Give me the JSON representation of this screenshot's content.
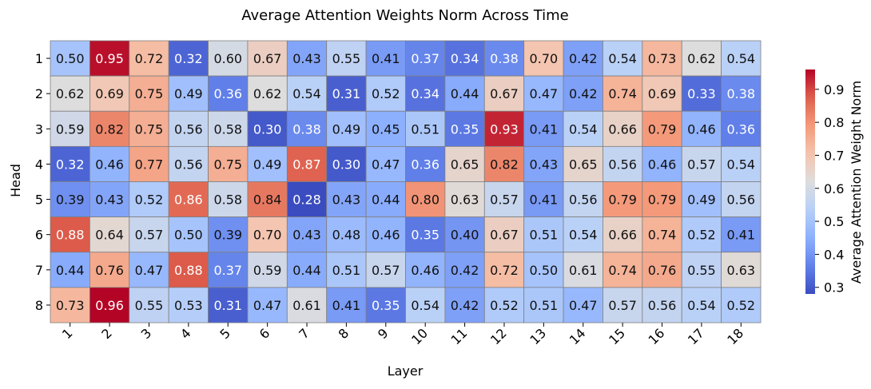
{
  "chart_data": {
    "type": "heatmap",
    "title": "Average Attention Weights Norm Across Time",
    "xlabel": "Layer",
    "ylabel": "Head",
    "colorbar_label": "Average Attention Weight Norm",
    "colormap": "coolwarm",
    "colorbar_range": [
      0.28,
      0.96
    ],
    "colorbar_ticks": [
      "0.3",
      "0.4",
      "0.5",
      "0.6",
      "0.7",
      "0.8",
      "0.9"
    ],
    "x_categories": [
      "1",
      "2",
      "3",
      "4",
      "5",
      "6",
      "7",
      "8",
      "9",
      "10",
      "11",
      "12",
      "13",
      "14",
      "15",
      "16",
      "17",
      "18"
    ],
    "y_categories": [
      "1",
      "2",
      "3",
      "4",
      "5",
      "6",
      "7",
      "8"
    ],
    "values": [
      [
        0.5,
        0.95,
        0.72,
        0.32,
        0.6,
        0.67,
        0.43,
        0.55,
        0.41,
        0.37,
        0.34,
        0.38,
        0.7,
        0.42,
        0.54,
        0.73,
        0.62,
        0.54
      ],
      [
        0.62,
        0.69,
        0.75,
        0.49,
        0.36,
        0.62,
        0.54,
        0.31,
        0.52,
        0.34,
        0.44,
        0.67,
        0.47,
        0.42,
        0.74,
        0.69,
        0.33,
        0.38
      ],
      [
        0.59,
        0.82,
        0.75,
        0.56,
        0.58,
        0.3,
        0.38,
        0.49,
        0.45,
        0.51,
        0.35,
        0.93,
        0.41,
        0.54,
        0.66,
        0.79,
        0.46,
        0.36
      ],
      [
        0.32,
        0.46,
        0.77,
        0.56,
        0.75,
        0.49,
        0.87,
        0.3,
        0.47,
        0.36,
        0.65,
        0.82,
        0.43,
        0.65,
        0.56,
        0.46,
        0.57,
        0.54
      ],
      [
        0.39,
        0.43,
        0.52,
        0.86,
        0.58,
        0.84,
        0.28,
        0.43,
        0.44,
        0.8,
        0.63,
        0.57,
        0.41,
        0.56,
        0.79,
        0.79,
        0.49,
        0.56
      ],
      [
        0.88,
        0.64,
        0.57,
        0.5,
        0.39,
        0.7,
        0.43,
        0.48,
        0.46,
        0.35,
        0.4,
        0.67,
        0.51,
        0.54,
        0.66,
        0.74,
        0.52,
        0.41
      ],
      [
        0.44,
        0.76,
        0.47,
        0.88,
        0.37,
        0.59,
        0.44,
        0.51,
        0.57,
        0.46,
        0.42,
        0.72,
        0.5,
        0.61,
        0.74,
        0.76,
        0.55,
        0.63
      ],
      [
        0.73,
        0.96,
        0.55,
        0.53,
        0.31,
        0.47,
        0.61,
        0.41,
        0.35,
        0.54,
        0.42,
        0.52,
        0.51,
        0.47,
        0.57,
        0.56,
        0.54,
        0.52
      ]
    ],
    "grid": true,
    "legend": "colorbar-right"
  }
}
